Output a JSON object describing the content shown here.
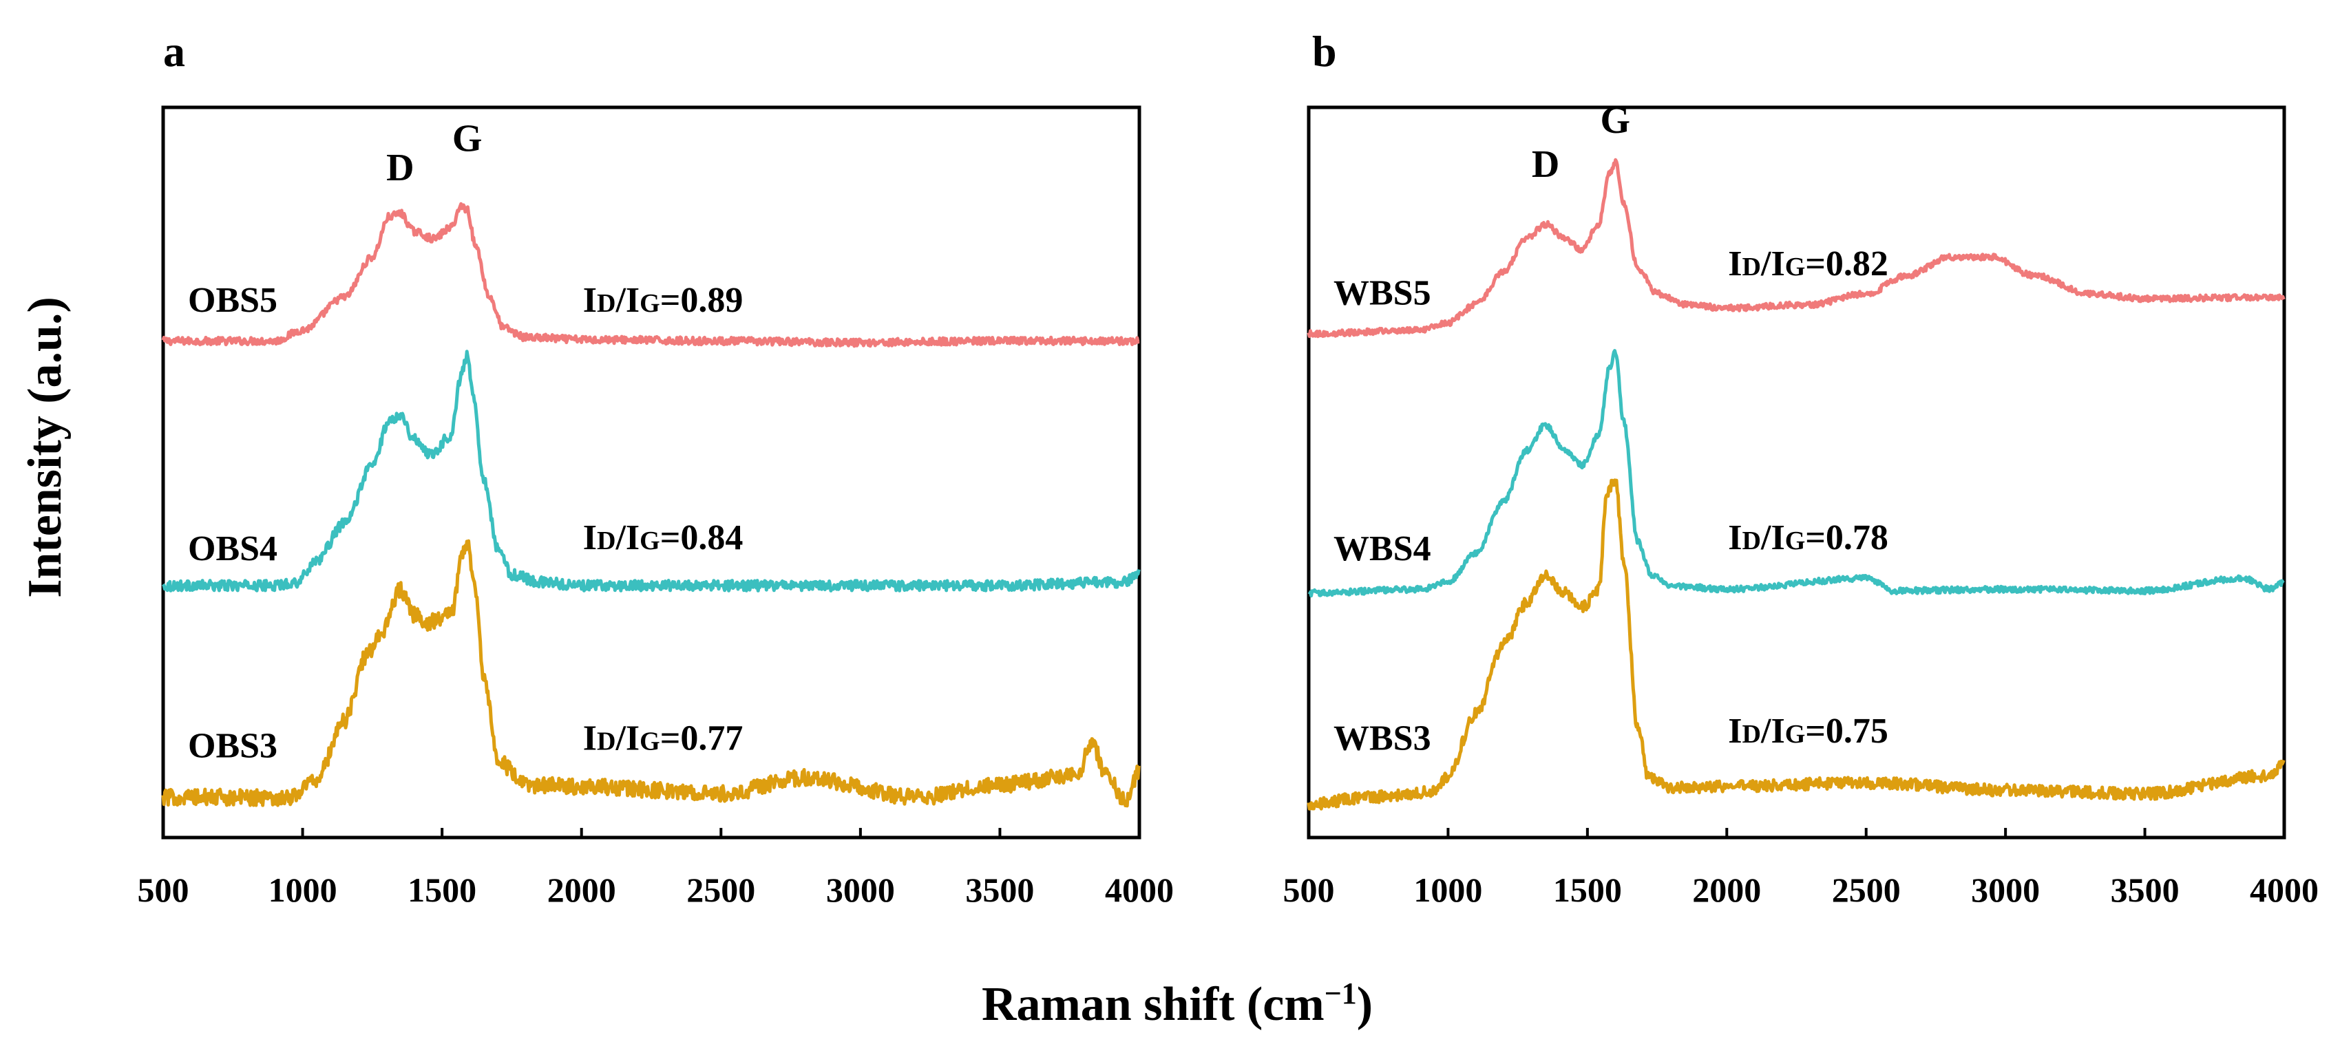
{
  "figure": {
    "xlabel_main": "Raman shift (cm",
    "xlabel_sup": "−1",
    "xlabel_close": ")",
    "ylabel": "Intensity (a.u.)"
  },
  "chart_data": [
    {
      "type": "line",
      "panel": "a",
      "title": "",
      "xlabel": "Raman shift (cm−1)",
      "ylabel": "Intensity (a.u.)",
      "xlim": [
        500,
        4000
      ],
      "ylim": [
        0,
        10
      ],
      "xticks": [
        500,
        1000,
        1500,
        2000,
        2500,
        3000,
        3500,
        4000
      ],
      "grid": false,
      "peaks": [
        {
          "label": "D",
          "x": 1350,
          "y": 9.0
        },
        {
          "label": "G",
          "x": 1590,
          "y": 9.4
        }
      ],
      "series": [
        {
          "name": "OBS5",
          "color": "#f07a7a",
          "ratio_value": "=0.89",
          "label_y": 7.2,
          "ratio_y": 7.2,
          "noise": 0.05,
          "x": [
            500,
            900,
            1000,
            1150,
            1250,
            1310,
            1350,
            1400,
            1470,
            1530,
            1570,
            1590,
            1620,
            1670,
            1720,
            1800,
            2000,
            2500,
            3000,
            3500,
            4000
          ],
          "y": [
            6.8,
            6.8,
            6.95,
            7.4,
            7.95,
            8.5,
            8.55,
            8.3,
            8.2,
            8.35,
            8.65,
            8.6,
            8.1,
            7.4,
            6.98,
            6.85,
            6.82,
            6.8,
            6.78,
            6.8,
            6.8
          ]
        },
        {
          "name": "OBS4",
          "color": "#3bbfbf",
          "ratio_value": "=0.84",
          "label_y": 3.8,
          "ratio_y": 3.95,
          "noise": 0.07,
          "x": [
            500,
            900,
            980,
            1050,
            1150,
            1250,
            1310,
            1350,
            1400,
            1460,
            1530,
            1570,
            1590,
            1610,
            1650,
            1700,
            1750,
            1850,
            2000,
            2500,
            3000,
            3500,
            3950,
            4000
          ],
          "y": [
            3.45,
            3.45,
            3.5,
            3.8,
            4.3,
            5.1,
            5.7,
            5.8,
            5.45,
            5.25,
            5.5,
            6.35,
            6.6,
            6.1,
            4.9,
            3.95,
            3.6,
            3.5,
            3.45,
            3.45,
            3.45,
            3.45,
            3.5,
            3.65
          ]
        },
        {
          "name": "OBS3",
          "color": "#dd9e10",
          "ratio_value": "=0.77",
          "label_y": 1.1,
          "ratio_y": 1.2,
          "noise": 0.11,
          "x": [
            500,
            950,
            1050,
            1150,
            1230,
            1290,
            1350,
            1400,
            1450,
            1500,
            1540,
            1570,
            1590,
            1620,
            1650,
            1700,
            1800,
            2000,
            2500,
            2800,
            3200,
            3500,
            3700,
            3780,
            3830,
            3880,
            3950,
            4000
          ],
          "y": [
            0.55,
            0.55,
            0.8,
            1.6,
            2.5,
            2.85,
            3.4,
            3.05,
            2.95,
            3.0,
            3.15,
            3.85,
            4.05,
            3.4,
            2.2,
            1.05,
            0.72,
            0.7,
            0.6,
            0.82,
            0.55,
            0.72,
            0.82,
            0.9,
            1.3,
            0.85,
            0.5,
            0.9
          ]
        }
      ]
    },
    {
      "type": "line",
      "panel": "b",
      "title": "",
      "xlabel": "Raman shift (cm−1)",
      "ylabel": "Intensity (a.u.)",
      "xlim": [
        500,
        4000
      ],
      "ylim": [
        0,
        10
      ],
      "xticks": [
        500,
        1000,
        1500,
        2000,
        2500,
        3000,
        3500,
        4000
      ],
      "grid": false,
      "peaks": [
        {
          "label": "D",
          "x": 1350,
          "y": 9.05
        },
        {
          "label": "G",
          "x": 1600,
          "y": 9.65
        }
      ],
      "series": [
        {
          "name": "WBS5",
          "color": "#f07a7a",
          "ratio_value": "=0.82",
          "label_y": 7.3,
          "ratio_y": 7.7,
          "noise": 0.04,
          "x": [
            500,
            900,
            1000,
            1100,
            1200,
            1280,
            1350,
            1420,
            1480,
            1540,
            1580,
            1600,
            1630,
            1680,
            1750,
            1850,
            2000,
            2300,
            2500,
            2650,
            2800,
            2950,
            3100,
            3300,
            3500,
            4000
          ],
          "y": [
            6.9,
            6.95,
            7.05,
            7.3,
            7.75,
            8.2,
            8.4,
            8.2,
            8.05,
            8.4,
            9.1,
            9.25,
            8.7,
            7.8,
            7.45,
            7.3,
            7.25,
            7.3,
            7.45,
            7.7,
            7.95,
            7.95,
            7.7,
            7.45,
            7.38,
            7.4
          ]
        },
        {
          "name": "WBS4",
          "color": "#3bbfbf",
          "ratio_value": "=0.78",
          "label_y": 3.8,
          "ratio_y": 3.95,
          "noise": 0.04,
          "x": [
            500,
            900,
            1000,
            1100,
            1200,
            1280,
            1350,
            1420,
            1480,
            1540,
            1580,
            1600,
            1630,
            1680,
            1730,
            1800,
            2000,
            2500,
            2600,
            3000,
            3500,
            3850,
            3950,
            4000
          ],
          "y": [
            3.35,
            3.4,
            3.5,
            3.9,
            4.6,
            5.3,
            5.65,
            5.3,
            5.1,
            5.5,
            6.45,
            6.65,
            5.7,
            4.05,
            3.6,
            3.45,
            3.4,
            3.55,
            3.38,
            3.4,
            3.38,
            3.55,
            3.4,
            3.5
          ]
        },
        {
          "name": "WBS3",
          "color": "#dd9e10",
          "ratio_value": "=0.75",
          "label_y": 1.2,
          "ratio_y": 1.3,
          "noise": 0.08,
          "x": [
            500,
            700,
            950,
            1000,
            1100,
            1200,
            1280,
            1350,
            1420,
            1480,
            1540,
            1570,
            1600,
            1630,
            1680,
            1720,
            1800,
            2000,
            2500,
            3000,
            3500,
            3950,
            4000
          ],
          "y": [
            0.45,
            0.55,
            0.62,
            0.85,
            1.7,
            2.65,
            3.2,
            3.6,
            3.35,
            3.15,
            3.4,
            4.7,
            4.9,
            3.8,
            1.5,
            0.82,
            0.68,
            0.7,
            0.75,
            0.65,
            0.6,
            0.85,
            1.05
          ]
        }
      ]
    }
  ]
}
